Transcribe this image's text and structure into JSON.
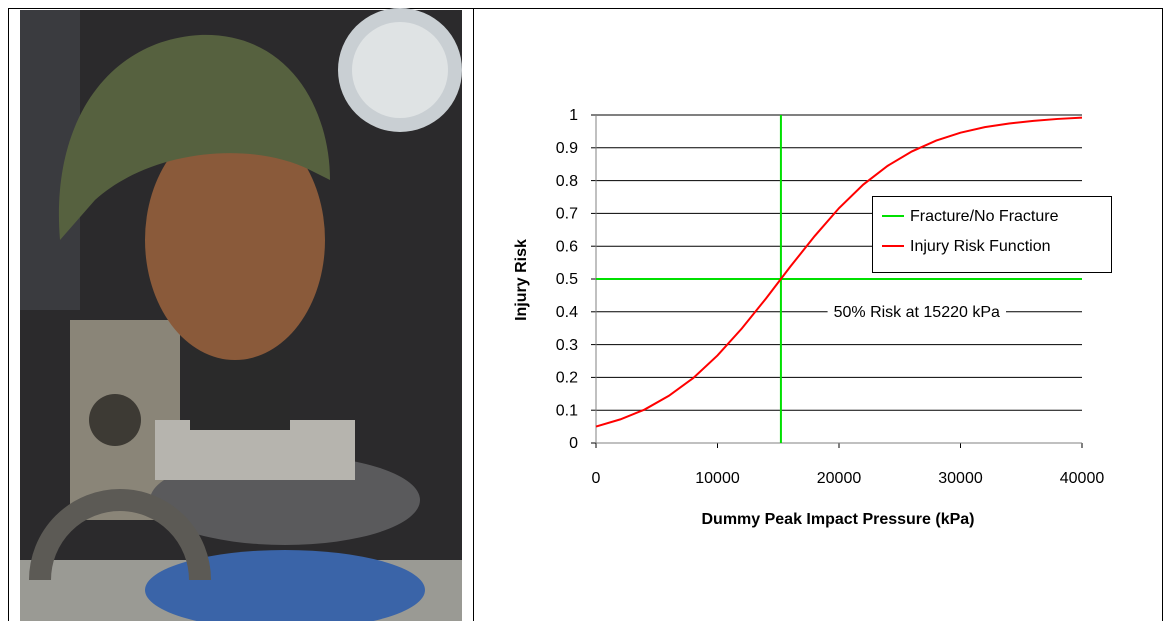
{
  "chart_data": {
    "type": "line",
    "xlabel": "Dummy Peak Impact Pressure (kPa)",
    "ylabel": "Injury Risk",
    "annotation": "50% Risk at 15220 kPa",
    "xlim": [
      0,
      40000
    ],
    "xticks": [
      0,
      10000,
      20000,
      30000,
      40000
    ],
    "ylim": [
      0,
      1
    ],
    "yticks": [
      0,
      0.1,
      0.2,
      0.3,
      0.4,
      0.5,
      0.6,
      0.7,
      0.8,
      0.9,
      1
    ],
    "grid": true,
    "legend": "right",
    "series": [
      {
        "name": "Fracture/No Fracture",
        "color": "#00e000",
        "x": [
          15220,
          15220,
          null,
          0,
          40000
        ],
        "values": [
          0,
          1,
          null,
          0.5,
          0.5
        ]
      },
      {
        "name": "Injury Risk Function",
        "color": "#ff0000",
        "x": [
          0,
          2000,
          4000,
          6000,
          8000,
          10000,
          12000,
          14000,
          16000,
          18000,
          20000,
          22000,
          24000,
          26000,
          28000,
          30000,
          32000,
          34000,
          36000,
          38000,
          40000
        ],
        "values": [
          0.05,
          0.072,
          0.102,
          0.144,
          0.198,
          0.267,
          0.349,
          0.441,
          0.538,
          0.631,
          0.716,
          0.788,
          0.845,
          0.889,
          0.922,
          0.946,
          0.963,
          0.974,
          0.982,
          0.988,
          0.992
        ]
      }
    ]
  }
}
